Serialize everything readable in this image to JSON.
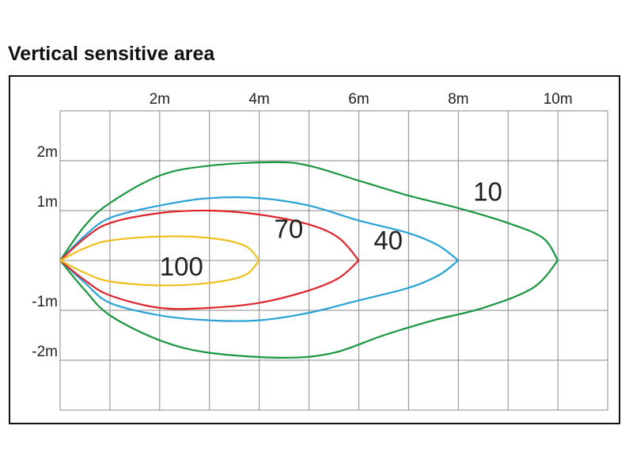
{
  "chart_data": {
    "type": "line",
    "title": "Vertical sensitive area",
    "xlabel": "",
    "ylabel": "",
    "xlim": [
      0,
      11
    ],
    "ylim": [
      -3,
      3
    ],
    "grid": true,
    "x_ticks": [
      {
        "value": 2,
        "label": "2m"
      },
      {
        "value": 4,
        "label": "4m"
      },
      {
        "value": 6,
        "label": "6m"
      },
      {
        "value": 8,
        "label": "8m"
      },
      {
        "value": 10,
        "label": "10m"
      }
    ],
    "y_ticks": [
      {
        "value": 2,
        "label": "2m"
      },
      {
        "value": 1,
        "label": "1m"
      },
      {
        "value": -1,
        "label": "-1m"
      },
      {
        "value": -2,
        "label": "-2m"
      }
    ],
    "series": [
      {
        "label": "10",
        "color": "#1a9641",
        "label_at": [
          8.3,
          1.2
        ],
        "upper": [
          [
            0,
            0
          ],
          [
            0.5,
            0.7
          ],
          [
            1,
            1.15
          ],
          [
            2,
            1.7
          ],
          [
            3,
            1.9
          ],
          [
            4.3,
            1.97
          ],
          [
            5,
            1.9
          ],
          [
            6,
            1.6
          ],
          [
            7,
            1.3
          ],
          [
            8,
            1.05
          ],
          [
            9,
            0.75
          ],
          [
            9.7,
            0.45
          ],
          [
            10,
            0
          ]
        ],
        "lower": [
          [
            0,
            0
          ],
          [
            0.5,
            -0.6
          ],
          [
            1,
            -1.1
          ],
          [
            2,
            -1.6
          ],
          [
            3,
            -1.85
          ],
          [
            4.5,
            -1.95
          ],
          [
            5.5,
            -1.85
          ],
          [
            6.5,
            -1.5
          ],
          [
            7.5,
            -1.2
          ],
          [
            8.5,
            -0.95
          ],
          [
            9.5,
            -0.55
          ],
          [
            10,
            0
          ]
        ]
      },
      {
        "label": "40",
        "color": "#29a3d6",
        "label_at": [
          6.3,
          0.22
        ],
        "upper": [
          [
            0,
            0
          ],
          [
            0.5,
            0.5
          ],
          [
            1,
            0.85
          ],
          [
            2,
            1.1
          ],
          [
            3,
            1.25
          ],
          [
            4,
            1.25
          ],
          [
            5,
            1.1
          ],
          [
            6,
            0.8
          ],
          [
            7,
            0.55
          ],
          [
            7.6,
            0.3
          ],
          [
            8,
            0
          ]
        ],
        "lower": [
          [
            0,
            0
          ],
          [
            0.5,
            -0.45
          ],
          [
            1,
            -0.85
          ],
          [
            2,
            -1.1
          ],
          [
            3,
            -1.2
          ],
          [
            4,
            -1.2
          ],
          [
            5,
            -1.05
          ],
          [
            6,
            -0.8
          ],
          [
            7,
            -0.55
          ],
          [
            7.6,
            -0.3
          ],
          [
            8,
            0
          ]
        ]
      },
      {
        "label": "70",
        "color": "#e0242b",
        "label_at": [
          4.3,
          0.45
        ],
        "upper": [
          [
            0,
            0
          ],
          [
            0.5,
            0.45
          ],
          [
            1,
            0.75
          ],
          [
            2,
            0.95
          ],
          [
            3,
            1.0
          ],
          [
            4,
            0.92
          ],
          [
            5,
            0.72
          ],
          [
            5.6,
            0.45
          ],
          [
            6,
            0
          ]
        ],
        "lower": [
          [
            0,
            0
          ],
          [
            0.5,
            -0.4
          ],
          [
            1,
            -0.7
          ],
          [
            2,
            -0.95
          ],
          [
            3,
            -0.95
          ],
          [
            4,
            -0.85
          ],
          [
            5,
            -0.6
          ],
          [
            5.6,
            -0.35
          ],
          [
            6,
            0
          ]
        ]
      },
      {
        "label": "100",
        "color": "#f0be1e",
        "label_at": [
          2.0,
          -0.3
        ],
        "upper": [
          [
            0,
            0
          ],
          [
            0.5,
            0.25
          ],
          [
            1,
            0.4
          ],
          [
            2,
            0.48
          ],
          [
            3,
            0.45
          ],
          [
            3.7,
            0.3
          ],
          [
            4,
            0
          ]
        ],
        "lower": [
          [
            0,
            0
          ],
          [
            0.5,
            -0.25
          ],
          [
            1,
            -0.42
          ],
          [
            2,
            -0.5
          ],
          [
            3,
            -0.45
          ],
          [
            3.7,
            -0.3
          ],
          [
            4,
            0
          ]
        ]
      }
    ]
  }
}
